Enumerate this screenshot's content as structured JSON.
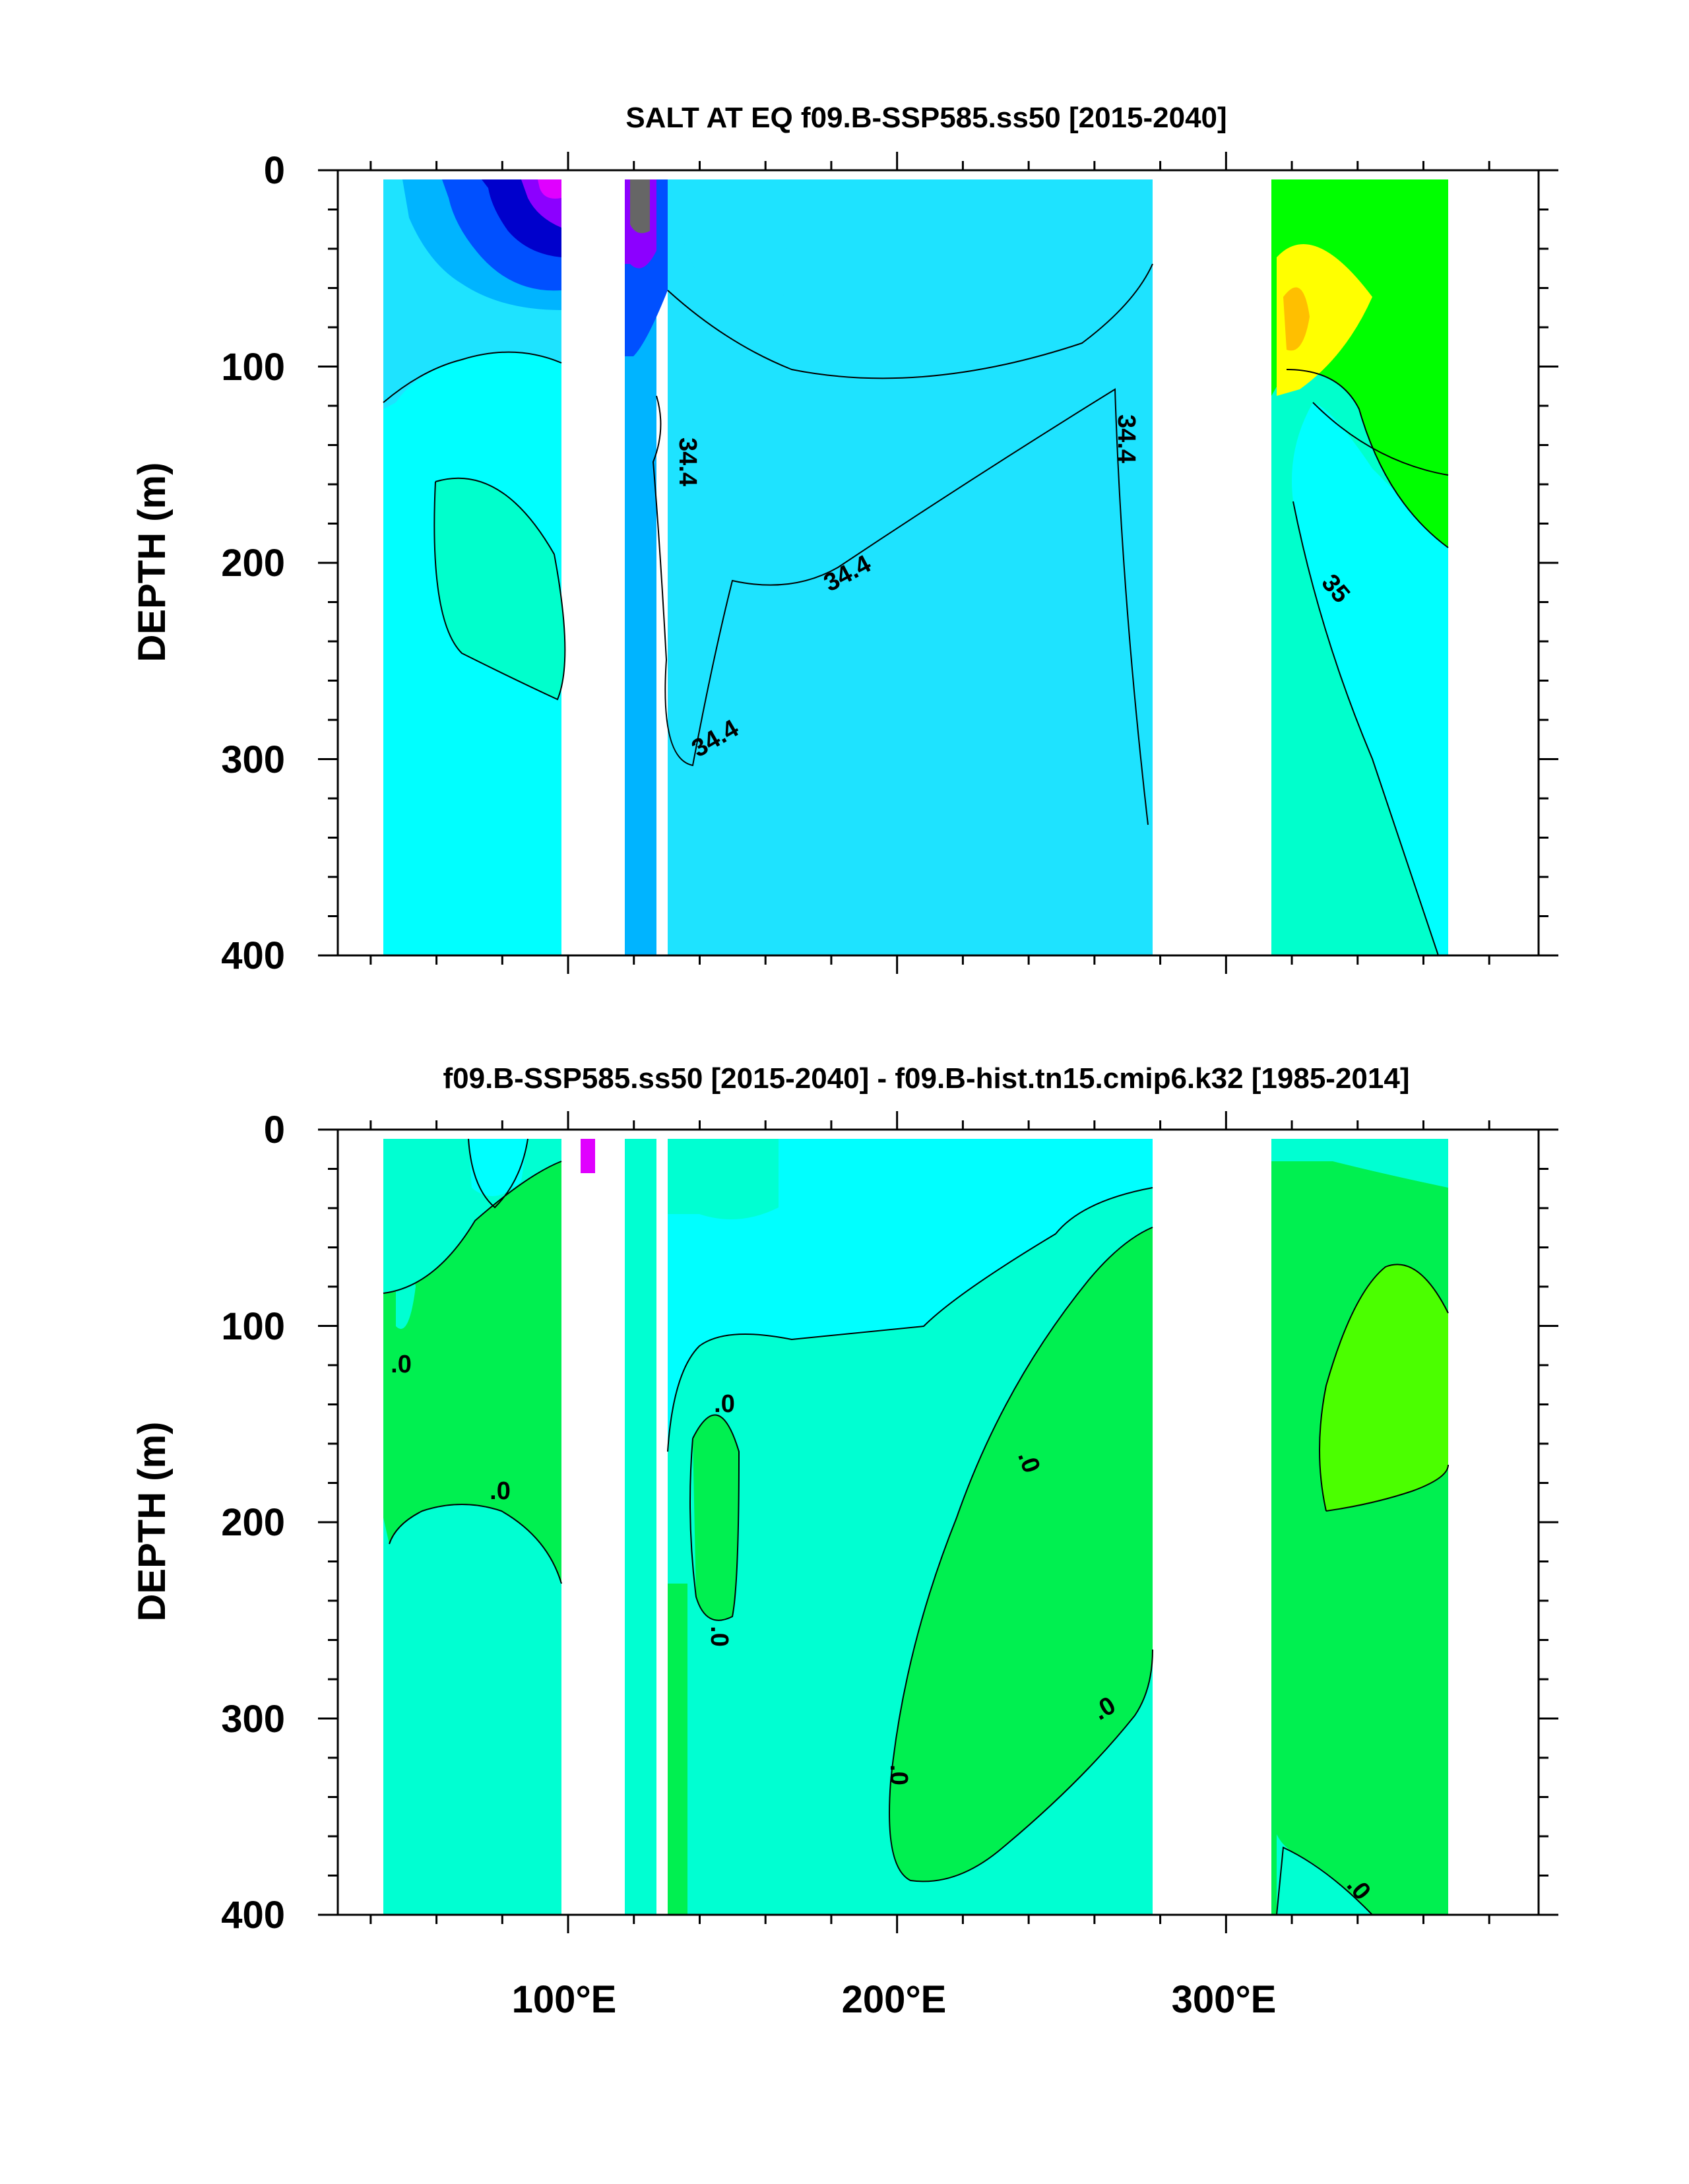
{
  "chart_data": [
    {
      "type": "contour",
      "title": "SALT AT EQ f09.B-SSP585.ss50 [2015-2040]",
      "xlabel": "",
      "ylabel": "DEPTH (m)",
      "xlim": [
        30,
        395
      ],
      "ylim": [
        400,
        0
      ],
      "x_ticks": [
        100,
        200,
        300
      ],
      "x_tick_labels": [
        "",
        "",
        ""
      ],
      "y_ticks": [
        0,
        100,
        200,
        300,
        400
      ],
      "y_tick_labels": [
        "0",
        "100",
        "200",
        "300",
        "400"
      ],
      "contour_labels": [
        "34.4",
        "34.4",
        "34.4",
        "34.4",
        "35"
      ],
      "colors": {
        "bg": "#1ee3ff",
        "light": "#00ffff",
        "mid": "#00b4ff",
        "dark": "#0050ff",
        "navy": "#0000cc",
        "purple": "#8c00ff",
        "magenta": "#e000ff",
        "gray": "#666666",
        "aqua": "#00ffcc",
        "green": "#00ff00",
        "yellow": "#ffff00",
        "orange": "#ffbf00"
      }
    },
    {
      "type": "contour",
      "title": "f09.B-SSP585.ss50 [2015-2040] - f09.B-hist.tn15.cmip6.k32 [1985-2014]",
      "xlabel": "",
      "ylabel": "DEPTH (m)",
      "xlim": [
        30,
        395
      ],
      "ylim": [
        400,
        0
      ],
      "x_ticks": [
        100,
        200,
        300
      ],
      "x_tick_labels": [
        "100°E",
        "200°E",
        "300°E"
      ],
      "y_ticks": [
        0,
        100,
        200,
        300,
        400
      ],
      "y_tick_labels": [
        "0",
        "100",
        "200",
        "300",
        "400"
      ],
      "contour_labels": [
        ".0",
        ".0",
        ".0",
        ".0",
        ".0",
        ".0",
        ".0",
        ".0"
      ],
      "colors": {
        "bg": "#00ffd2",
        "light": "#00ffff",
        "green": "#00f050",
        "lime": "#4bff00",
        "magenta": "#e000ff"
      }
    }
  ]
}
